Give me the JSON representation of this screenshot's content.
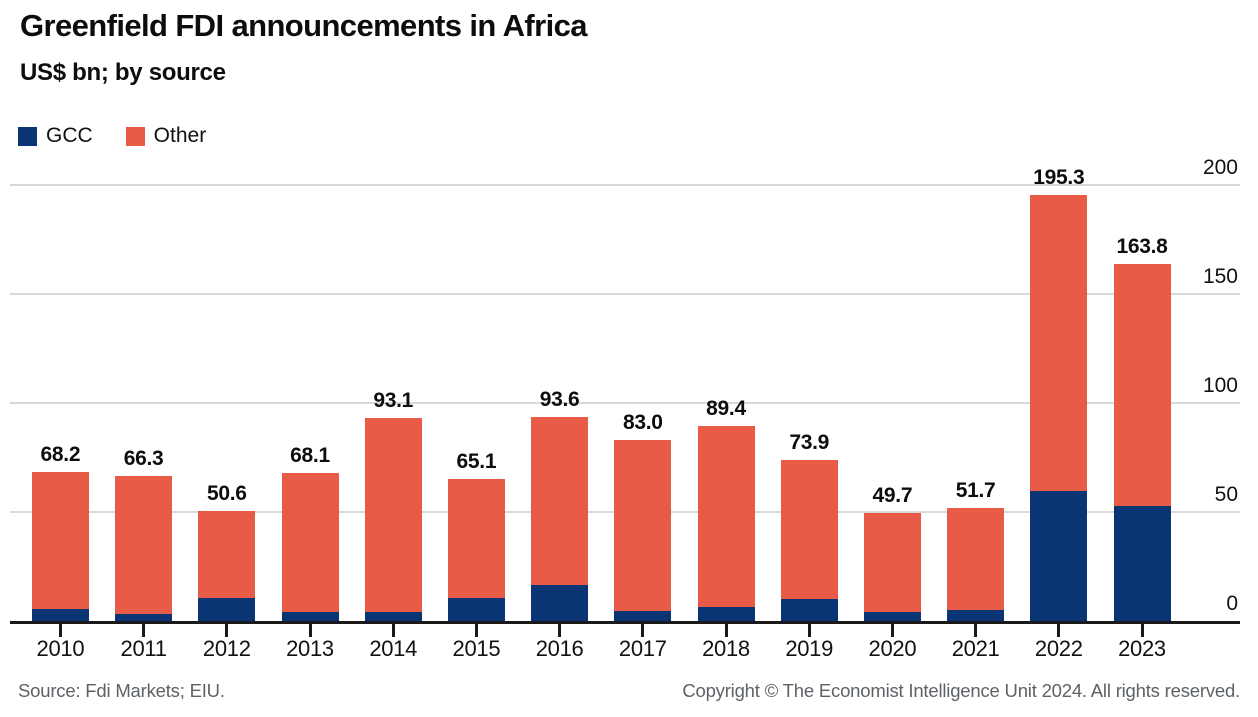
{
  "header": {
    "title": "Greenfield FDI announcements in Africa",
    "subtitle": "US$ bn; by source"
  },
  "legend": [
    {
      "label": "GCC",
      "color": "#0b3474"
    },
    {
      "label": "Other",
      "color": "#e85c47"
    }
  ],
  "chart_data": {
    "type": "bar",
    "stacked": true,
    "title": "Greenfield FDI announcements in Africa",
    "subtitle": "US$ bn; by source",
    "categories": [
      "2010",
      "2011",
      "2012",
      "2013",
      "2014",
      "2015",
      "2016",
      "2017",
      "2018",
      "2019",
      "2020",
      "2021",
      "2022",
      "2023"
    ],
    "series": [
      {
        "name": "GCC",
        "color": "#0b3474",
        "values": [
          5.3,
          3.0,
          10.4,
          4.0,
          4.3,
          10.6,
          16.3,
          4.7,
          6.4,
          10.2,
          4.2,
          5.2,
          59.8,
          52.6
        ]
      },
      {
        "name": "Other",
        "color": "#e85c47",
        "values": [
          62.9,
          63.3,
          40.2,
          64.1,
          88.8,
          54.5,
          77.3,
          78.3,
          83.0,
          63.7,
          45.5,
          46.5,
          135.5,
          111.2
        ]
      }
    ],
    "totals": [
      68.2,
      66.3,
      50.6,
      68.1,
      93.1,
      65.1,
      93.6,
      83.0,
      89.4,
      73.9,
      49.7,
      51.7,
      195.3,
      163.8
    ],
    "total_labels": [
      "68.2",
      "66.3",
      "50.6",
      "68.1",
      "93.1",
      "65.1",
      "93.6",
      "83.0",
      "89.4",
      "73.9",
      "49.7",
      "51.7",
      "195.3",
      "163.8"
    ],
    "xlabel": "",
    "ylabel": "US$ bn",
    "yticks": [
      0,
      50,
      100,
      150,
      200
    ],
    "ylim": [
      0,
      200
    ],
    "grid": true,
    "legend_position": "top-left"
  },
  "footer": {
    "source": "Source: Fdi Markets; EIU.",
    "copyright": "Copyright © The Economist Intelligence Unit 2024. All rights reserved."
  }
}
